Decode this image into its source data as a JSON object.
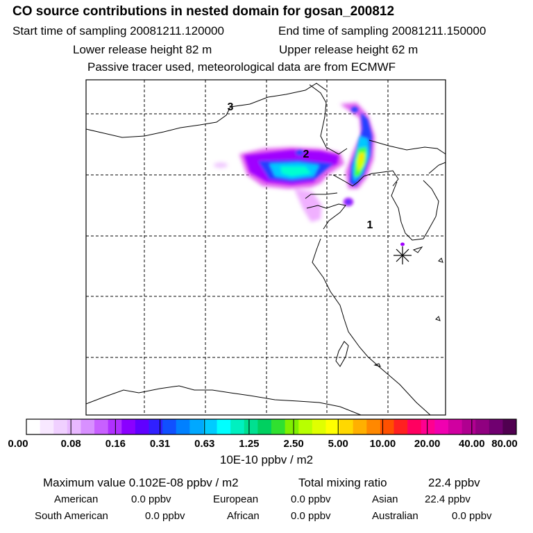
{
  "header": {
    "title": "CO  source contributions in nested domain for gosan_200812",
    "start_label": "Start time of sampling 20081211.120000",
    "end_label": "End time of sampling 20081211.150000",
    "lower_label": "Lower release height   82 m",
    "upper_label": "Upper release height   62 m",
    "tracer_note": "Passive tracer used, meteorological data are from ECMWF"
  },
  "map": {
    "region_labels": [
      "3",
      "2",
      "1"
    ],
    "site_marker": "asterisk-icon",
    "plume_colors": [
      "#e060f0",
      "#a000ff",
      "#2040ff",
      "#00c8ff",
      "#00ffd0",
      "#40ff40",
      "#d8ff00",
      "#ffe000"
    ]
  },
  "colorbar": {
    "colors": [
      "#ffffff",
      "#f8e8ff",
      "#f0d0ff",
      "#e8b8ff",
      "#d890ff",
      "#c860ff",
      "#b030ff",
      "#8a00ff",
      "#6000ff",
      "#3020ff",
      "#1050ff",
      "#0080ff",
      "#00a8ff",
      "#00ccff",
      "#00ffff",
      "#00f0c0",
      "#00e090",
      "#00d060",
      "#30e030",
      "#80f000",
      "#b8ff00",
      "#e0ff00",
      "#ffff00",
      "#ffd800",
      "#ffb000",
      "#ff8800",
      "#ff5000",
      "#ff2020",
      "#ff0060",
      "#ff0090",
      "#f000b0",
      "#d000a0",
      "#b00090",
      "#900080",
      "#700070",
      "#500050"
    ],
    "tick_labels": [
      "0.00",
      "0.08",
      "0.16",
      "0.31",
      "0.63",
      "1.25",
      "2.50",
      "5.00",
      "10.00",
      "20.00",
      "40.00",
      "80.00"
    ],
    "unit_label": "10E-10 ppbv / m2"
  },
  "summary": {
    "max_label": "Maximum value  0.102E-08 ppbv / m2",
    "total_label": "Total mixing ratio",
    "total_value": "22.4 ppbv",
    "rows": [
      [
        {
          "name": "American",
          "value": "0.0 ppbv"
        },
        {
          "name": "European",
          "value": "0.0 ppbv"
        },
        {
          "name": "Asian",
          "value": "22.4 ppbv"
        }
      ],
      [
        {
          "name": "South American",
          "value": "0.0 ppbv"
        },
        {
          "name": "African",
          "value": "0.0 ppbv"
        },
        {
          "name": "Australian",
          "value": "0.0 ppbv"
        }
      ]
    ]
  }
}
